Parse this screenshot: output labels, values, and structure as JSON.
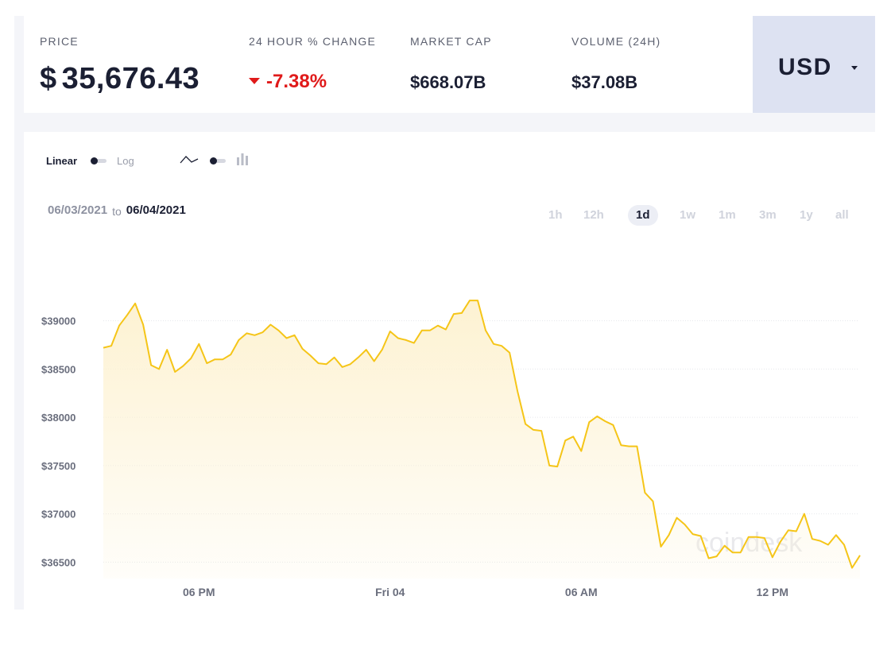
{
  "stats": {
    "price": {
      "label": "PRICE",
      "currency_symbol": "$",
      "value": "35,676.43"
    },
    "change": {
      "label": "24 HOUR % CHANGE",
      "value": "-7.38%",
      "color": "#e01a1a"
    },
    "market_cap": {
      "label": "MARKET CAP",
      "value": "$668.07B"
    },
    "volume": {
      "label": "VOLUME (24H)",
      "value": "$37.08B"
    }
  },
  "currency": {
    "label": "USD",
    "icon": "caret-down-icon"
  },
  "controls": {
    "scale_linear": "Linear",
    "scale_log": "Log",
    "line_icon": "line-chart-icon",
    "candle_icon": "candlestick-icon"
  },
  "date_range": {
    "start": "06/03/2021",
    "to": "to",
    "end": "06/04/2021"
  },
  "periods": [
    "1h",
    "12h",
    "1d",
    "1w",
    "1m",
    "3m",
    "1y",
    "all"
  ],
  "active_period": "1d",
  "watermark": "coindesk",
  "chart_data": {
    "type": "area",
    "title": "",
    "xlabel": "",
    "ylabel": "",
    "ylim": [
      36330,
      39820
    ],
    "y_ticks": [
      36500,
      37000,
      37500,
      38000,
      38500,
      39000
    ],
    "y_tick_labels": [
      "$36500",
      "$37000",
      "$37500",
      "$38000",
      "$38500",
      "$39000"
    ],
    "x_tick_labels": [
      "06 PM",
      "Fri 04",
      "06 AM",
      "12 PM"
    ],
    "x_tick_hours": [
      3,
      9,
      15,
      21
    ],
    "x_range_hours": [
      0,
      23.7
    ],
    "grid": true,
    "line_color": "#f5c518",
    "fill_color": "#fdf2d2",
    "series": [
      {
        "x_hours": [
          0,
          0.25,
          0.5,
          0.75,
          1.0,
          1.25,
          1.5,
          1.75,
          2.0,
          2.25,
          2.5,
          2.75,
          3.0,
          3.25,
          3.5,
          3.75,
          4.0,
          4.25,
          4.5,
          4.75,
          5.0,
          5.25,
          5.5,
          5.75,
          6.0,
          6.25,
          6.5,
          6.75,
          7.0,
          7.25,
          7.5,
          7.75,
          8.0,
          8.25,
          8.5,
          8.75,
          9.0,
          9.25,
          9.5,
          9.75,
          10.0,
          10.25,
          10.5,
          10.75,
          11.0,
          11.25,
          11.5,
          11.75,
          12.0,
          12.25,
          12.5,
          12.75,
          13.0,
          13.25,
          13.5,
          13.75,
          14.0,
          14.25,
          14.5,
          14.75,
          15.0,
          15.25,
          15.5,
          15.75,
          16.0,
          16.25,
          16.5,
          16.75,
          17.0,
          17.25,
          17.5,
          17.75,
          18.0,
          18.25,
          18.5,
          18.75,
          19.0,
          19.25,
          19.5,
          19.75,
          20.0,
          20.25,
          20.5,
          20.75,
          21.0,
          21.25,
          21.5,
          21.75,
          22.0,
          22.25,
          22.5,
          22.75,
          23.0,
          23.25,
          23.5,
          23.75
        ],
        "values": [
          38720,
          38740,
          38950,
          39060,
          39180,
          38960,
          38540,
          38500,
          38700,
          38470,
          38530,
          38610,
          38760,
          38560,
          38600,
          38600,
          38650,
          38800,
          38870,
          38850,
          38880,
          38960,
          38900,
          38820,
          38850,
          38710,
          38640,
          38560,
          38550,
          38620,
          38520,
          38550,
          38620,
          38700,
          38580,
          38700,
          38890,
          38820,
          38800,
          38770,
          38900,
          38900,
          38950,
          38910,
          39070,
          39080,
          39210,
          39210,
          38900,
          38760,
          38740,
          38670,
          38270,
          37930,
          37870,
          37860,
          37500,
          37490,
          37760,
          37800,
          37650,
          37950,
          38010,
          37960,
          37920,
          37710,
          37700,
          37700,
          37220,
          37130,
          36660,
          36780,
          36960,
          36890,
          36790,
          36770,
          36540,
          36560,
          36670,
          36600,
          36600,
          36760,
          36760,
          36750,
          36550,
          36710,
          36830,
          36820,
          37000,
          36740,
          36720,
          36680,
          36780,
          36680,
          36440,
          36570
        ]
      }
    ]
  }
}
